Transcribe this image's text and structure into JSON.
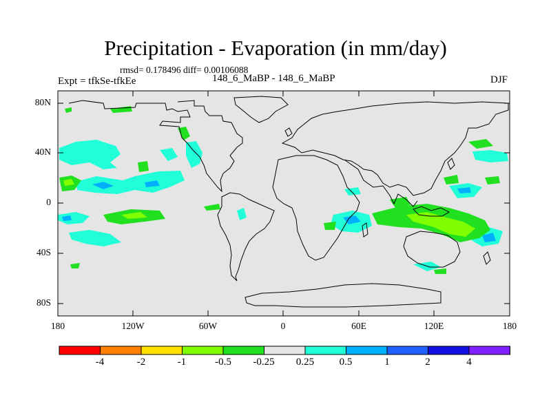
{
  "title": "Precipitation - Evaporation (in mm/day)",
  "stats": "rmsd= 0.178496 diff= 0.00106088",
  "expt_label": "Expt = tfkSe-tfkEe",
  "case_label": "148_6_MaBP - 148_6_MaBP",
  "season": "DJF",
  "y_ticks": [
    "80N",
    "40N",
    "0",
    "40S",
    "80S"
  ],
  "x_ticks": [
    "180",
    "120W",
    "60W",
    "0",
    "60E",
    "120E",
    "180"
  ],
  "colorbar": {
    "colors": [
      "#ff0000",
      "#ff8000",
      "#ffe000",
      "#80ff00",
      "#20e020",
      "#e5e5e5",
      "#20ffd8",
      "#00b0ff",
      "#2060ff",
      "#1010e0",
      "#8020ff"
    ],
    "labels": [
      "-4",
      "-2",
      "-1",
      "-0.5",
      "-0.25",
      "0.25",
      "0.5",
      "1",
      "2",
      "4"
    ]
  },
  "colors": {
    "background": "#e5e5e5",
    "positive_weak": "#20ffd8",
    "positive_mid": "#00b0ff",
    "negative_weak": "#20e020",
    "negative_mid": "#80ff00"
  }
}
